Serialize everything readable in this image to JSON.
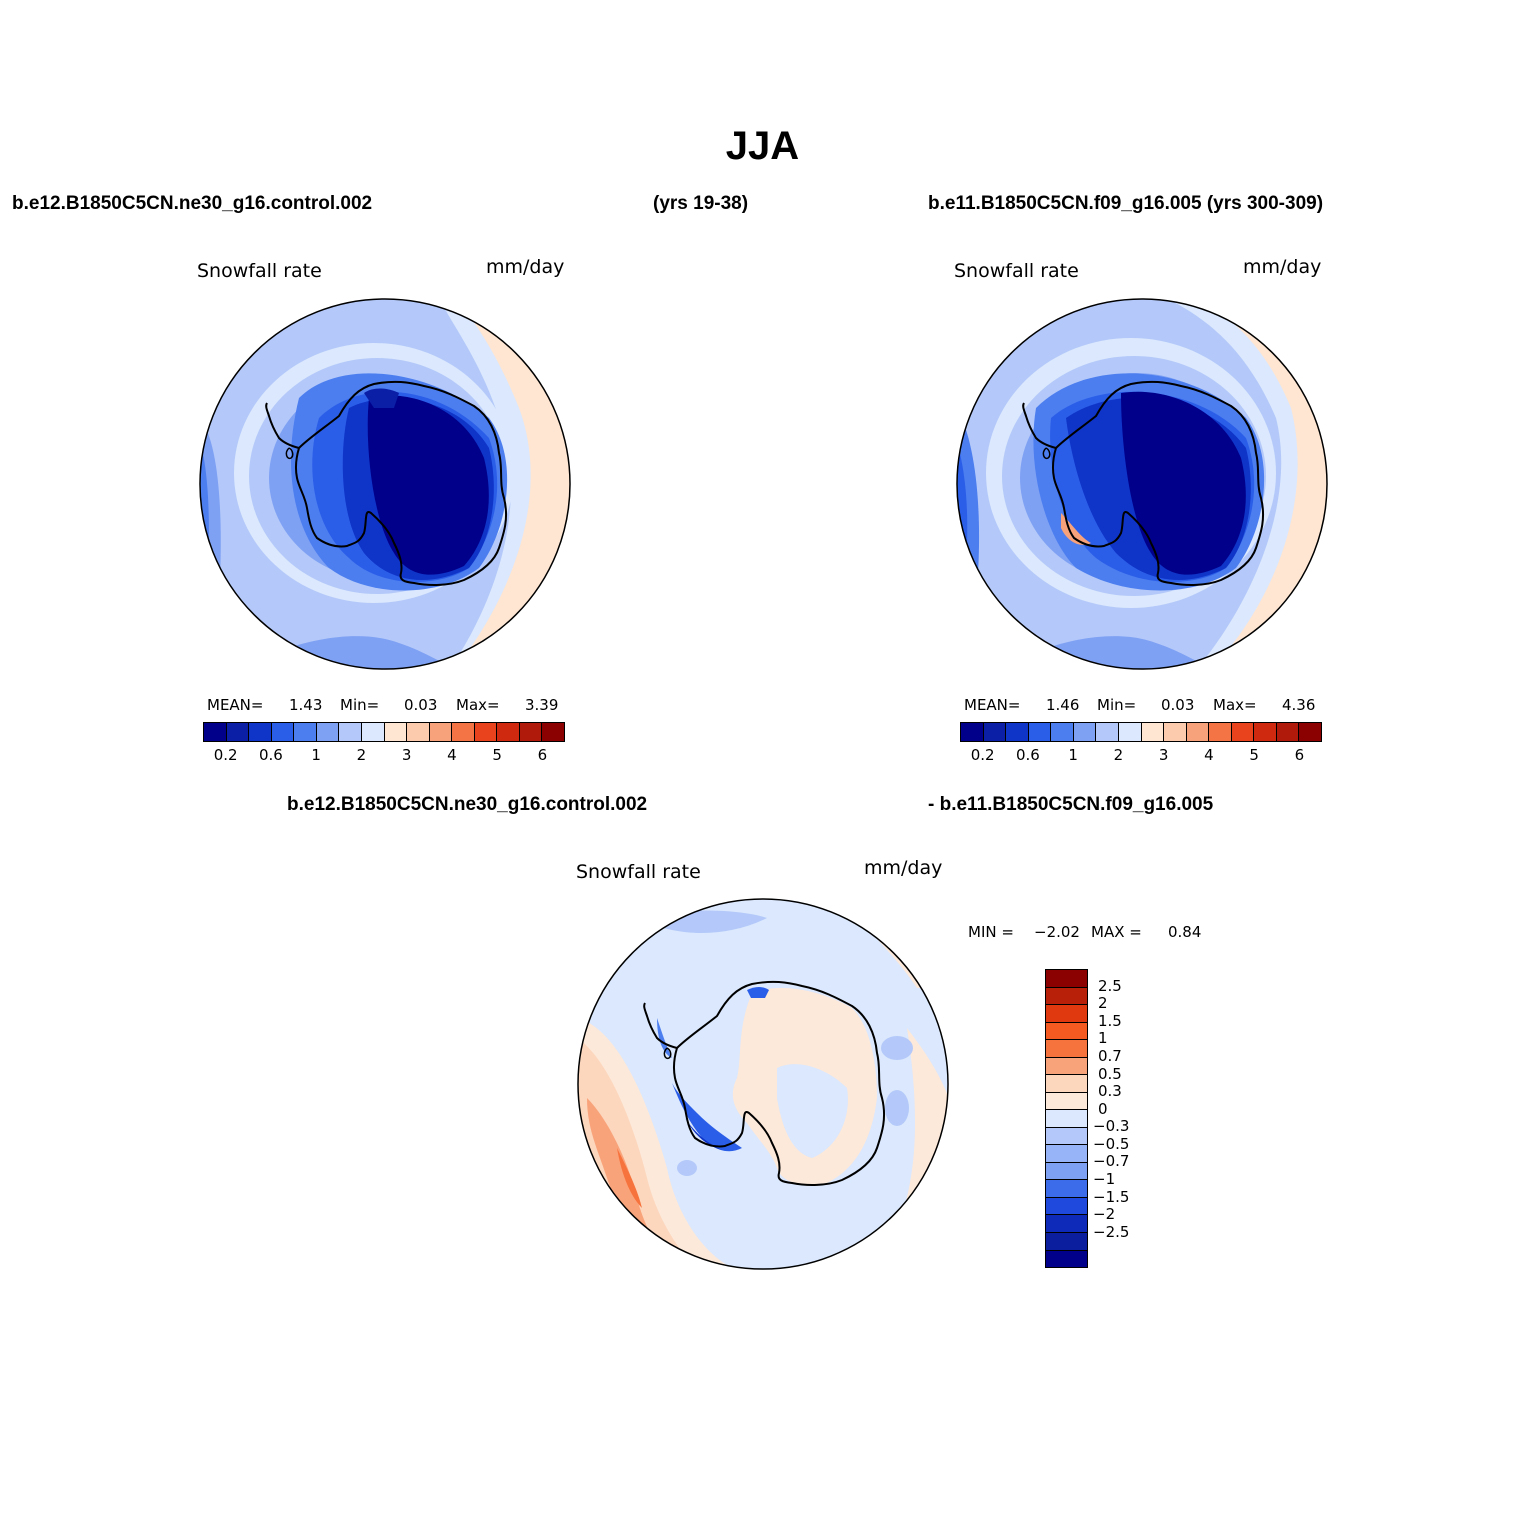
{
  "title": "JJA",
  "header": {
    "case1": "b.e12.B1850C5CN.ne30_g16.control.002",
    "case1_years": "(yrs 19-38)",
    "case2": "b.e11.B1850C5CN.f09_g16.005 (yrs 300-309)",
    "diff_case1": "b.e12.B1850C5CN.ne30_g16.control.002",
    "diff_case2": "- b.e11.B1850C5CN.f09_g16.005"
  },
  "panels": [
    {
      "variable": "Snowfall rate",
      "units": "mm/day",
      "stats": {
        "mean_label": "MEAN=",
        "mean": "1.43",
        "min_label": "Min=",
        "min": "0.03",
        "max_label": "Max=",
        "max": "3.39"
      }
    },
    {
      "variable": "Snowfall rate",
      "units": "mm/day",
      "stats": {
        "mean_label": "MEAN=",
        "mean": "1.46",
        "min_label": "Min=",
        "min": "0.03",
        "max_label": "Max=",
        "max": "4.36"
      }
    }
  ],
  "diff_panel": {
    "variable": "Snowfall rate",
    "units": "mm/day",
    "min_label": "MIN =",
    "min": "−2.02",
    "max_label": "MAX =",
    "max": "0.84"
  },
  "colorbar": {
    "colors": [
      "#00008b",
      "#0a1ea6",
      "#0f34c8",
      "#2b5ee8",
      "#4c7ef0",
      "#7fa1f4",
      "#b4c9f9",
      "#dbe8fd",
      "#fee6d3",
      "#fccbae",
      "#f8a27c",
      "#f47446",
      "#e8431c",
      "#cf2a10",
      "#b01a0b",
      "#8b0000"
    ],
    "ticks": [
      "0.2",
      "0.6",
      "1",
      "2",
      "3",
      "4",
      "5",
      "6"
    ]
  },
  "diff_colorbar": {
    "colors": [
      "#8b0000",
      "#b8200a",
      "#e0380f",
      "#f55a20",
      "#f7733d",
      "#f9a37b",
      "#fcd7bd",
      "#fde9da",
      "#dbe8fd",
      "#b4c9f9",
      "#96b4f7",
      "#7fa1f4",
      "#3d6cea",
      "#1e49dc",
      "#0d2ab8",
      "#0a1e9e",
      "#00008b"
    ],
    "ticks": [
      "2.5",
      "2",
      "1.5",
      "1",
      "0.7",
      "0.5",
      "0.3",
      "0",
      "−0.3",
      "−0.5",
      "−0.7",
      "−1",
      "−1.5",
      "−2",
      "−2.5"
    ]
  }
}
